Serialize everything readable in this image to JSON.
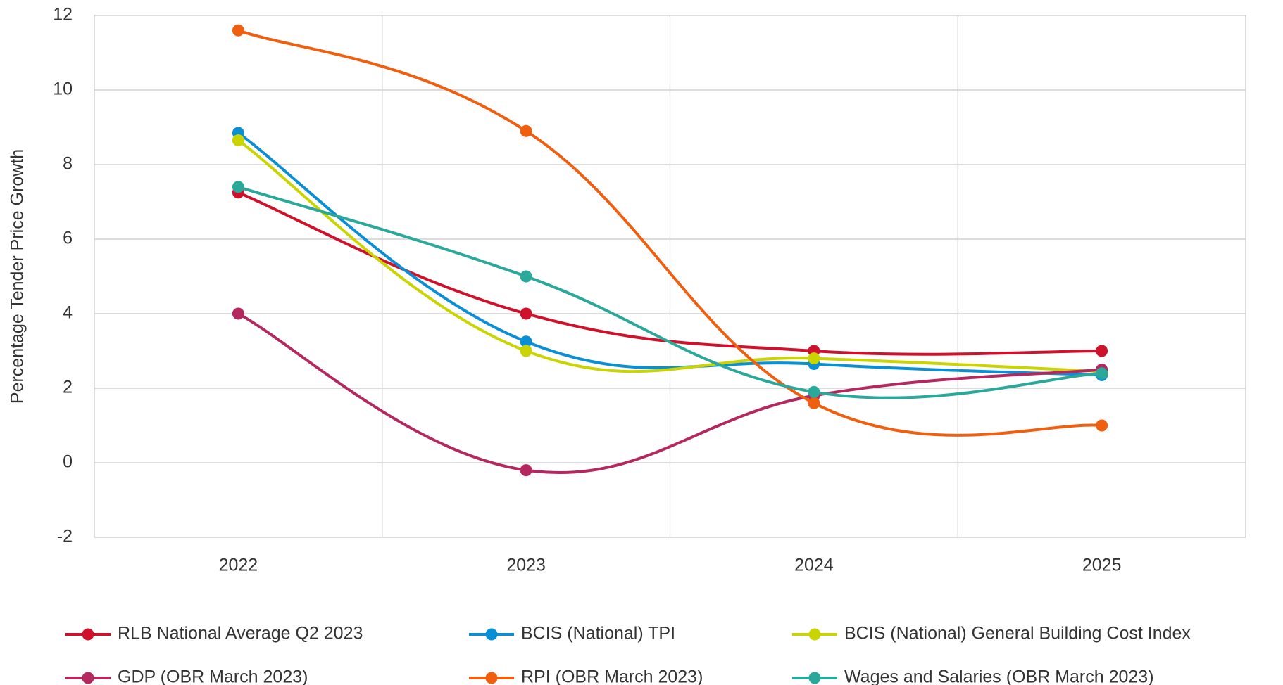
{
  "chart_data": {
    "type": "line",
    "y_label": "Percentage Tender Price Growth",
    "categories": [
      "2022",
      "2023",
      "2024",
      "2025"
    ],
    "series": [
      {
        "name": "RLB National Average Q2 2023",
        "color": "#d0112b",
        "values": [
          7.25,
          4.0,
          3.0,
          3.0
        ]
      },
      {
        "name": "BCIS (National) TPI",
        "color": "#0a8fd4",
        "values": [
          8.85,
          3.25,
          2.65,
          2.35
        ]
      },
      {
        "name": "BCIS (National) General Building Cost Index",
        "color": "#c9d400",
        "values": [
          8.65,
          3.0,
          2.8,
          2.45
        ]
      },
      {
        "name": "GDP (OBR March 2023)",
        "color": "#b5285f",
        "values": [
          4.0,
          -0.2,
          1.8,
          2.5
        ]
      },
      {
        "name": "RPI (OBR March 2023)",
        "color": "#ef5f0f",
        "values": [
          11.6,
          8.9,
          1.6,
          1.0
        ]
      },
      {
        "name": "Wages and Salaries (OBR March 2023)",
        "color": "#2aa89a",
        "values": [
          7.4,
          5.0,
          1.9,
          2.4
        ]
      }
    ],
    "ylim": [
      -2,
      12
    ],
    "yticks": [
      -2,
      0,
      2,
      4,
      6,
      8,
      10,
      12
    ],
    "grid": true,
    "smooth": true,
    "legend": "bottom"
  }
}
